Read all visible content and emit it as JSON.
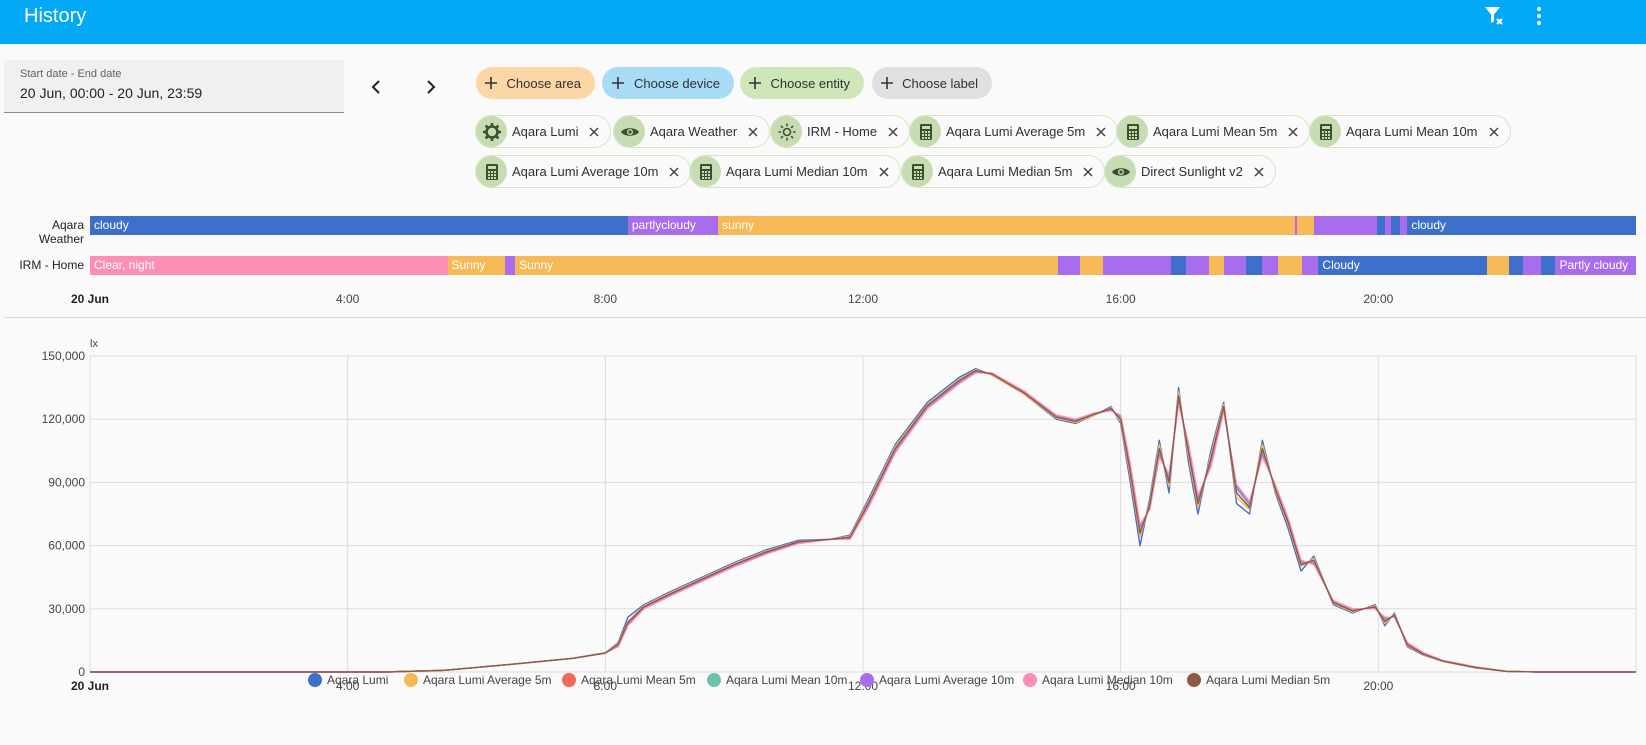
{
  "header": {
    "title": "History",
    "clear_filter_icon": "filter-remove-icon",
    "menu_icon": "dots-vertical-icon",
    "bg_color": "#03a9f4"
  },
  "date_picker": {
    "label": "Start date - End date",
    "value": "20 Jun, 00:00 - 20 Jun, 23:59"
  },
  "pickers": [
    {
      "label": "Choose area",
      "color": "#fdd6a6"
    },
    {
      "label": "Choose device",
      "color": "#a8dcf6"
    },
    {
      "label": "Choose entity",
      "color": "#cfe6b8"
    },
    {
      "label": "Choose label",
      "color": "#e0e0e0"
    }
  ],
  "entities": [
    {
      "label": "Aqara Lumi",
      "icon": "gear-icon"
    },
    {
      "label": "Aqara Weather",
      "icon": "eye-icon"
    },
    {
      "label": "IRM - Home",
      "icon": "sun-icon"
    },
    {
      "label": "Aqara Lumi Average 5m",
      "icon": "calculator-icon"
    },
    {
      "label": "Aqara Lumi Mean 5m",
      "icon": "calculator-icon"
    },
    {
      "label": "Aqara Lumi Mean 10m",
      "icon": "calculator-icon"
    },
    {
      "label": "Aqara Lumi Average 10m",
      "icon": "calculator-icon"
    },
    {
      "label": "Aqara Lumi Median 10m",
      "icon": "calculator-icon"
    },
    {
      "label": "Aqara Lumi Median 5m",
      "icon": "calculator-icon"
    },
    {
      "label": "Direct Sunlight v2",
      "icon": "eye-icon"
    }
  ],
  "timeline": {
    "colors": {
      "cloudy": "#3e6fcb",
      "partlycloudy": "#a86ded",
      "sunny": "#f6b955",
      "night": "#fd8eb6"
    },
    "rows": [
      {
        "name": "Aqara Weather",
        "segments": [
          {
            "start": 0,
            "end": 8.35,
            "state": "cloudy",
            "label": "cloudy"
          },
          {
            "start": 8.35,
            "end": 9.75,
            "state": "partlycloudy",
            "label": "partlycloudy"
          },
          {
            "start": 9.75,
            "end": 18.7,
            "state": "sunny",
            "label": "sunny"
          },
          {
            "start": 18.7,
            "end": 18.73,
            "state": "partlycloudy",
            "label": ""
          },
          {
            "start": 18.73,
            "end": 19.0,
            "state": "sunny",
            "label": ""
          },
          {
            "start": 19.0,
            "end": 19.98,
            "state": "partlycloudy",
            "label": ""
          },
          {
            "start": 19.98,
            "end": 20.1,
            "state": "cloudy",
            "label": ""
          },
          {
            "start": 20.1,
            "end": 20.2,
            "state": "partlycloudy",
            "label": ""
          },
          {
            "start": 20.2,
            "end": 20.33,
            "state": "cloudy",
            "label": ""
          },
          {
            "start": 20.33,
            "end": 20.45,
            "state": "partlycloudy",
            "label": ""
          },
          {
            "start": 20.45,
            "end": 24.0,
            "state": "cloudy",
            "label": "cloudy"
          }
        ]
      },
      {
        "name": "IRM - Home",
        "segments": [
          {
            "start": 0,
            "end": 5.55,
            "state": "night",
            "label": "Clear, night"
          },
          {
            "start": 5.55,
            "end": 6.45,
            "state": "sunny",
            "label": "Sunny"
          },
          {
            "start": 6.45,
            "end": 6.6,
            "state": "partlycloudy",
            "label": ""
          },
          {
            "start": 6.6,
            "end": 15.03,
            "state": "sunny",
            "label": "Sunny"
          },
          {
            "start": 15.03,
            "end": 15.37,
            "state": "partlycloudy",
            "label": ""
          },
          {
            "start": 15.37,
            "end": 15.73,
            "state": "sunny",
            "label": ""
          },
          {
            "start": 15.73,
            "end": 16.78,
            "state": "partlycloudy",
            "label": ""
          },
          {
            "start": 16.78,
            "end": 17.02,
            "state": "cloudy",
            "label": ""
          },
          {
            "start": 17.02,
            "end": 17.37,
            "state": "partlycloudy",
            "label": ""
          },
          {
            "start": 17.37,
            "end": 17.6,
            "state": "sunny",
            "label": ""
          },
          {
            "start": 17.6,
            "end": 17.95,
            "state": "partlycloudy",
            "label": ""
          },
          {
            "start": 17.95,
            "end": 18.2,
            "state": "cloudy",
            "label": ""
          },
          {
            "start": 18.2,
            "end": 18.45,
            "state": "partlycloudy",
            "label": ""
          },
          {
            "start": 18.45,
            "end": 18.82,
            "state": "sunny",
            "label": ""
          },
          {
            "start": 18.82,
            "end": 19.07,
            "state": "partlycloudy",
            "label": ""
          },
          {
            "start": 19.07,
            "end": 21.68,
            "state": "cloudy",
            "label": "Cloudy"
          },
          {
            "start": 21.68,
            "end": 22.03,
            "state": "sunny",
            "label": ""
          },
          {
            "start": 22.03,
            "end": 22.25,
            "state": "cloudy",
            "label": ""
          },
          {
            "start": 22.25,
            "end": 22.52,
            "state": "partlycloudy",
            "label": ""
          },
          {
            "start": 22.52,
            "end": 22.75,
            "state": "cloudy",
            "label": ""
          },
          {
            "start": 22.75,
            "end": 24.0,
            "state": "partlycloudy",
            "label": "Partly cloudy"
          }
        ]
      }
    ],
    "ticks": [
      "20 Jun",
      "4:00",
      "8:00",
      "12:00",
      "16:00",
      "20:00"
    ]
  },
  "chart_data": {
    "type": "line",
    "ylabel": "lx",
    "ylim": [
      0,
      150000
    ],
    "yticks": [
      "0",
      "30,000",
      "60,000",
      "90,000",
      "120,000",
      "150,000"
    ],
    "xlim": [
      0,
      24
    ],
    "xticks": [
      "20 Jun",
      "4:00",
      "8:00",
      "12:00",
      "16:00",
      "20:00"
    ],
    "grid": true,
    "legend_position": "bottom",
    "x_hours": [
      0,
      4.6,
      5.5,
      6.5,
      7.5,
      8.0,
      8.2,
      8.35,
      8.6,
      9.0,
      9.5,
      10.0,
      10.5,
      11.0,
      11.5,
      11.8,
      12.1,
      12.5,
      13.0,
      13.5,
      13.75,
      14.0,
      14.5,
      15.0,
      15.3,
      15.6,
      15.85,
      16.0,
      16.15,
      16.3,
      16.45,
      16.6,
      16.75,
      16.9,
      17.05,
      17.2,
      17.4,
      17.6,
      17.8,
      18.0,
      18.2,
      18.4,
      18.6,
      18.8,
      19.0,
      19.3,
      19.6,
      19.95,
      20.1,
      20.25,
      20.45,
      20.7,
      21.0,
      21.5,
      22.0,
      22.5,
      23.0,
      24.0
    ],
    "series": [
      {
        "name": "Aqara Lumi",
        "color": "#3e6fcb",
        "values": [
          0,
          0,
          800,
          3500,
          6500,
          9000,
          14000,
          26000,
          32000,
          38000,
          45000,
          52000,
          58000,
          62500,
          63000,
          65000,
          83000,
          108000,
          128000,
          140000,
          144000,
          141000,
          132000,
          120000,
          118000,
          122000,
          126000,
          118000,
          90000,
          60000,
          82000,
          110000,
          85000,
          135000,
          100000,
          75000,
          105000,
          128000,
          80000,
          75000,
          110000,
          85000,
          68000,
          48000,
          55000,
          32000,
          28000,
          32000,
          22000,
          28000,
          12000,
          8000,
          5000,
          2000,
          300,
          0,
          0,
          0
        ]
      },
      {
        "name": "Aqara Lumi Average 5m",
        "color": "#f6b955",
        "values": [
          0,
          0,
          800,
          3500,
          6500,
          9000,
          13500,
          24000,
          31500,
          37500,
          44500,
          51500,
          57500,
          62000,
          63000,
          64500,
          82000,
          107000,
          127000,
          139000,
          143500,
          141000,
          132000,
          120500,
          118500,
          122000,
          125500,
          119000,
          93000,
          64000,
          80000,
          108000,
          88000,
          133000,
          103000,
          78000,
          103000,
          127000,
          83000,
          77000,
          108000,
          86000,
          70000,
          50000,
          54000,
          32500,
          28500,
          31500,
          23000,
          27500,
          12500,
          8200,
          5100,
          2100,
          300,
          0,
          0,
          0
        ]
      },
      {
        "name": "Aqara Lumi Mean 5m",
        "color": "#f26a5b",
        "values": [
          0,
          0,
          800,
          3500,
          6500,
          9000,
          13000,
          23500,
          31000,
          37000,
          44000,
          51000,
          57000,
          61800,
          63000,
          64000,
          81000,
          106000,
          126500,
          138500,
          143000,
          141500,
          132500,
          121000,
          119000,
          122500,
          125000,
          120000,
          95000,
          66000,
          79000,
          106000,
          90000,
          131000,
          105000,
          80000,
          101000,
          126000,
          85000,
          78000,
          106000,
          87000,
          71000,
          51000,
          53000,
          33000,
          29000,
          31000,
          24000,
          27000,
          13000,
          8500,
          5200,
          2200,
          300,
          0,
          0,
          0
        ]
      },
      {
        "name": "Aqara Lumi Mean 10m",
        "color": "#6cc3ad",
        "values": [
          0,
          0,
          800,
          3500,
          6500,
          9000,
          12500,
          23000,
          30500,
          36500,
          43500,
          50500,
          56500,
          61500,
          63000,
          63500,
          80000,
          105000,
          126000,
          138000,
          142500,
          141500,
          133000,
          121500,
          119500,
          122500,
          124500,
          121000,
          97000,
          68000,
          78000,
          104000,
          92000,
          129000,
          107000,
          82000,
          99000,
          125000,
          87000,
          79000,
          104000,
          88000,
          72000,
          52000,
          52000,
          33500,
          29500,
          30500,
          25000,
          26500,
          13500,
          8800,
          5300,
          2300,
          300,
          0,
          0,
          0
        ]
      },
      {
        "name": "Aqara Lumi Average 10m",
        "color": "#a86ded",
        "values": [
          0,
          0,
          800,
          3500,
          6500,
          9000,
          12500,
          22800,
          30300,
          36300,
          43300,
          50300,
          56300,
          61300,
          63000,
          63300,
          79500,
          104500,
          125500,
          137500,
          142300,
          141800,
          133200,
          121800,
          119800,
          122700,
          124300,
          121500,
          98000,
          69000,
          77500,
          103000,
          93000,
          128000,
          108000,
          83000,
          98000,
          124500,
          88000,
          80000,
          103000,
          88500,
          72500,
          52500,
          51500,
          33800,
          29800,
          30300,
          25500,
          26300,
          13800,
          9000,
          5400,
          2400,
          300,
          0,
          0,
          0
        ]
      },
      {
        "name": "Aqara Lumi Median 10m",
        "color": "#fd8eb6",
        "values": [
          0,
          0,
          800,
          3500,
          6500,
          9000,
          12000,
          22000,
          30000,
          36000,
          43000,
          50000,
          56000,
          61000,
          63000,
          63000,
          79000,
          104000,
          125000,
          137000,
          142000,
          142000,
          133500,
          122000,
          120000,
          123000,
          124000,
          122000,
          99000,
          70000,
          77000,
          102000,
          94000,
          127000,
          109000,
          84000,
          97000,
          124000,
          89000,
          81000,
          102000,
          89000,
          73000,
          53000,
          51000,
          34000,
          30000,
          30000,
          26000,
          26000,
          14000,
          9200,
          5500,
          2500,
          300,
          0,
          0,
          0
        ]
      },
      {
        "name": "Aqara Lumi Median 5m",
        "color": "#8d5b44",
        "values": [
          0,
          0,
          800,
          3500,
          6500,
          9000,
          13000,
          23500,
          31000,
          37000,
          44000,
          51000,
          57000,
          61800,
          63000,
          64000,
          81000,
          106000,
          126500,
          138500,
          143000,
          141500,
          132500,
          121000,
          119000,
          122500,
          125000,
          120000,
          95000,
          66000,
          79000,
          106000,
          90000,
          131000,
          105000,
          80000,
          101000,
          126000,
          85000,
          78000,
          106000,
          87000,
          71000,
          51000,
          53000,
          33000,
          29000,
          31000,
          24000,
          27000,
          13000,
          8500,
          5200,
          2200,
          300,
          0,
          0,
          0
        ]
      }
    ]
  }
}
